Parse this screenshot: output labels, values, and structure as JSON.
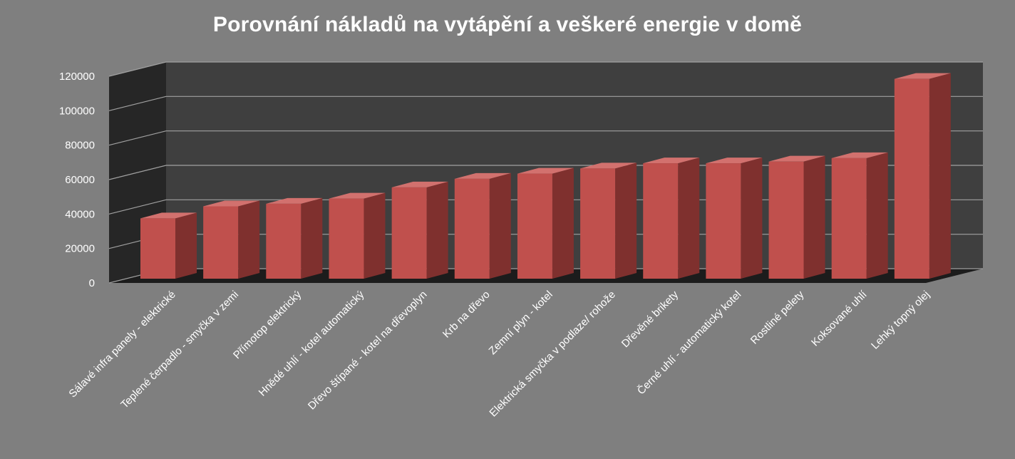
{
  "chart_data": {
    "type": "bar",
    "title": "Porovnání nákladů na vytápění a veškeré energie v domě",
    "xlabel": "",
    "ylabel": "",
    "ylim": [
      0,
      120000
    ],
    "yticks": [
      "0",
      "20000",
      "40000",
      "60000",
      "80000",
      "100000",
      "120000"
    ],
    "grid": true,
    "legend": "none",
    "categories": [
      "Sálavé infra panely - elektrické",
      "Teplené čerpadlo - smyčka v zemi",
      "Přímotop elektrický",
      "Hnědé uhlí - kotel automatický",
      "Dřevo štípané - kotel na dřevoplyn",
      "Krb na dřevo",
      "Zemní plyn - kotel",
      "Elektrická smyčka v podlaze/ rohože",
      "Dřevěné brikety",
      "Černé uhlí - automatický kotel",
      "Rostliné pelety",
      "Koksované uhlí",
      "Lehký topný olej"
    ],
    "values": [
      35000,
      42000,
      43500,
      46500,
      53000,
      58000,
      61000,
      64000,
      67000,
      67000,
      68000,
      70000,
      116000
    ]
  },
  "colors": {
    "background": "#7f7f7f",
    "back_wall": "#3f3f3f",
    "side_wall": "#262626",
    "floor": "#1c1c1c",
    "bar_front": "#c0504d",
    "bar_side": "#7f302e",
    "bar_top": "#d2716e",
    "grid": "#a0a0a0",
    "text": "#ffffff"
  }
}
